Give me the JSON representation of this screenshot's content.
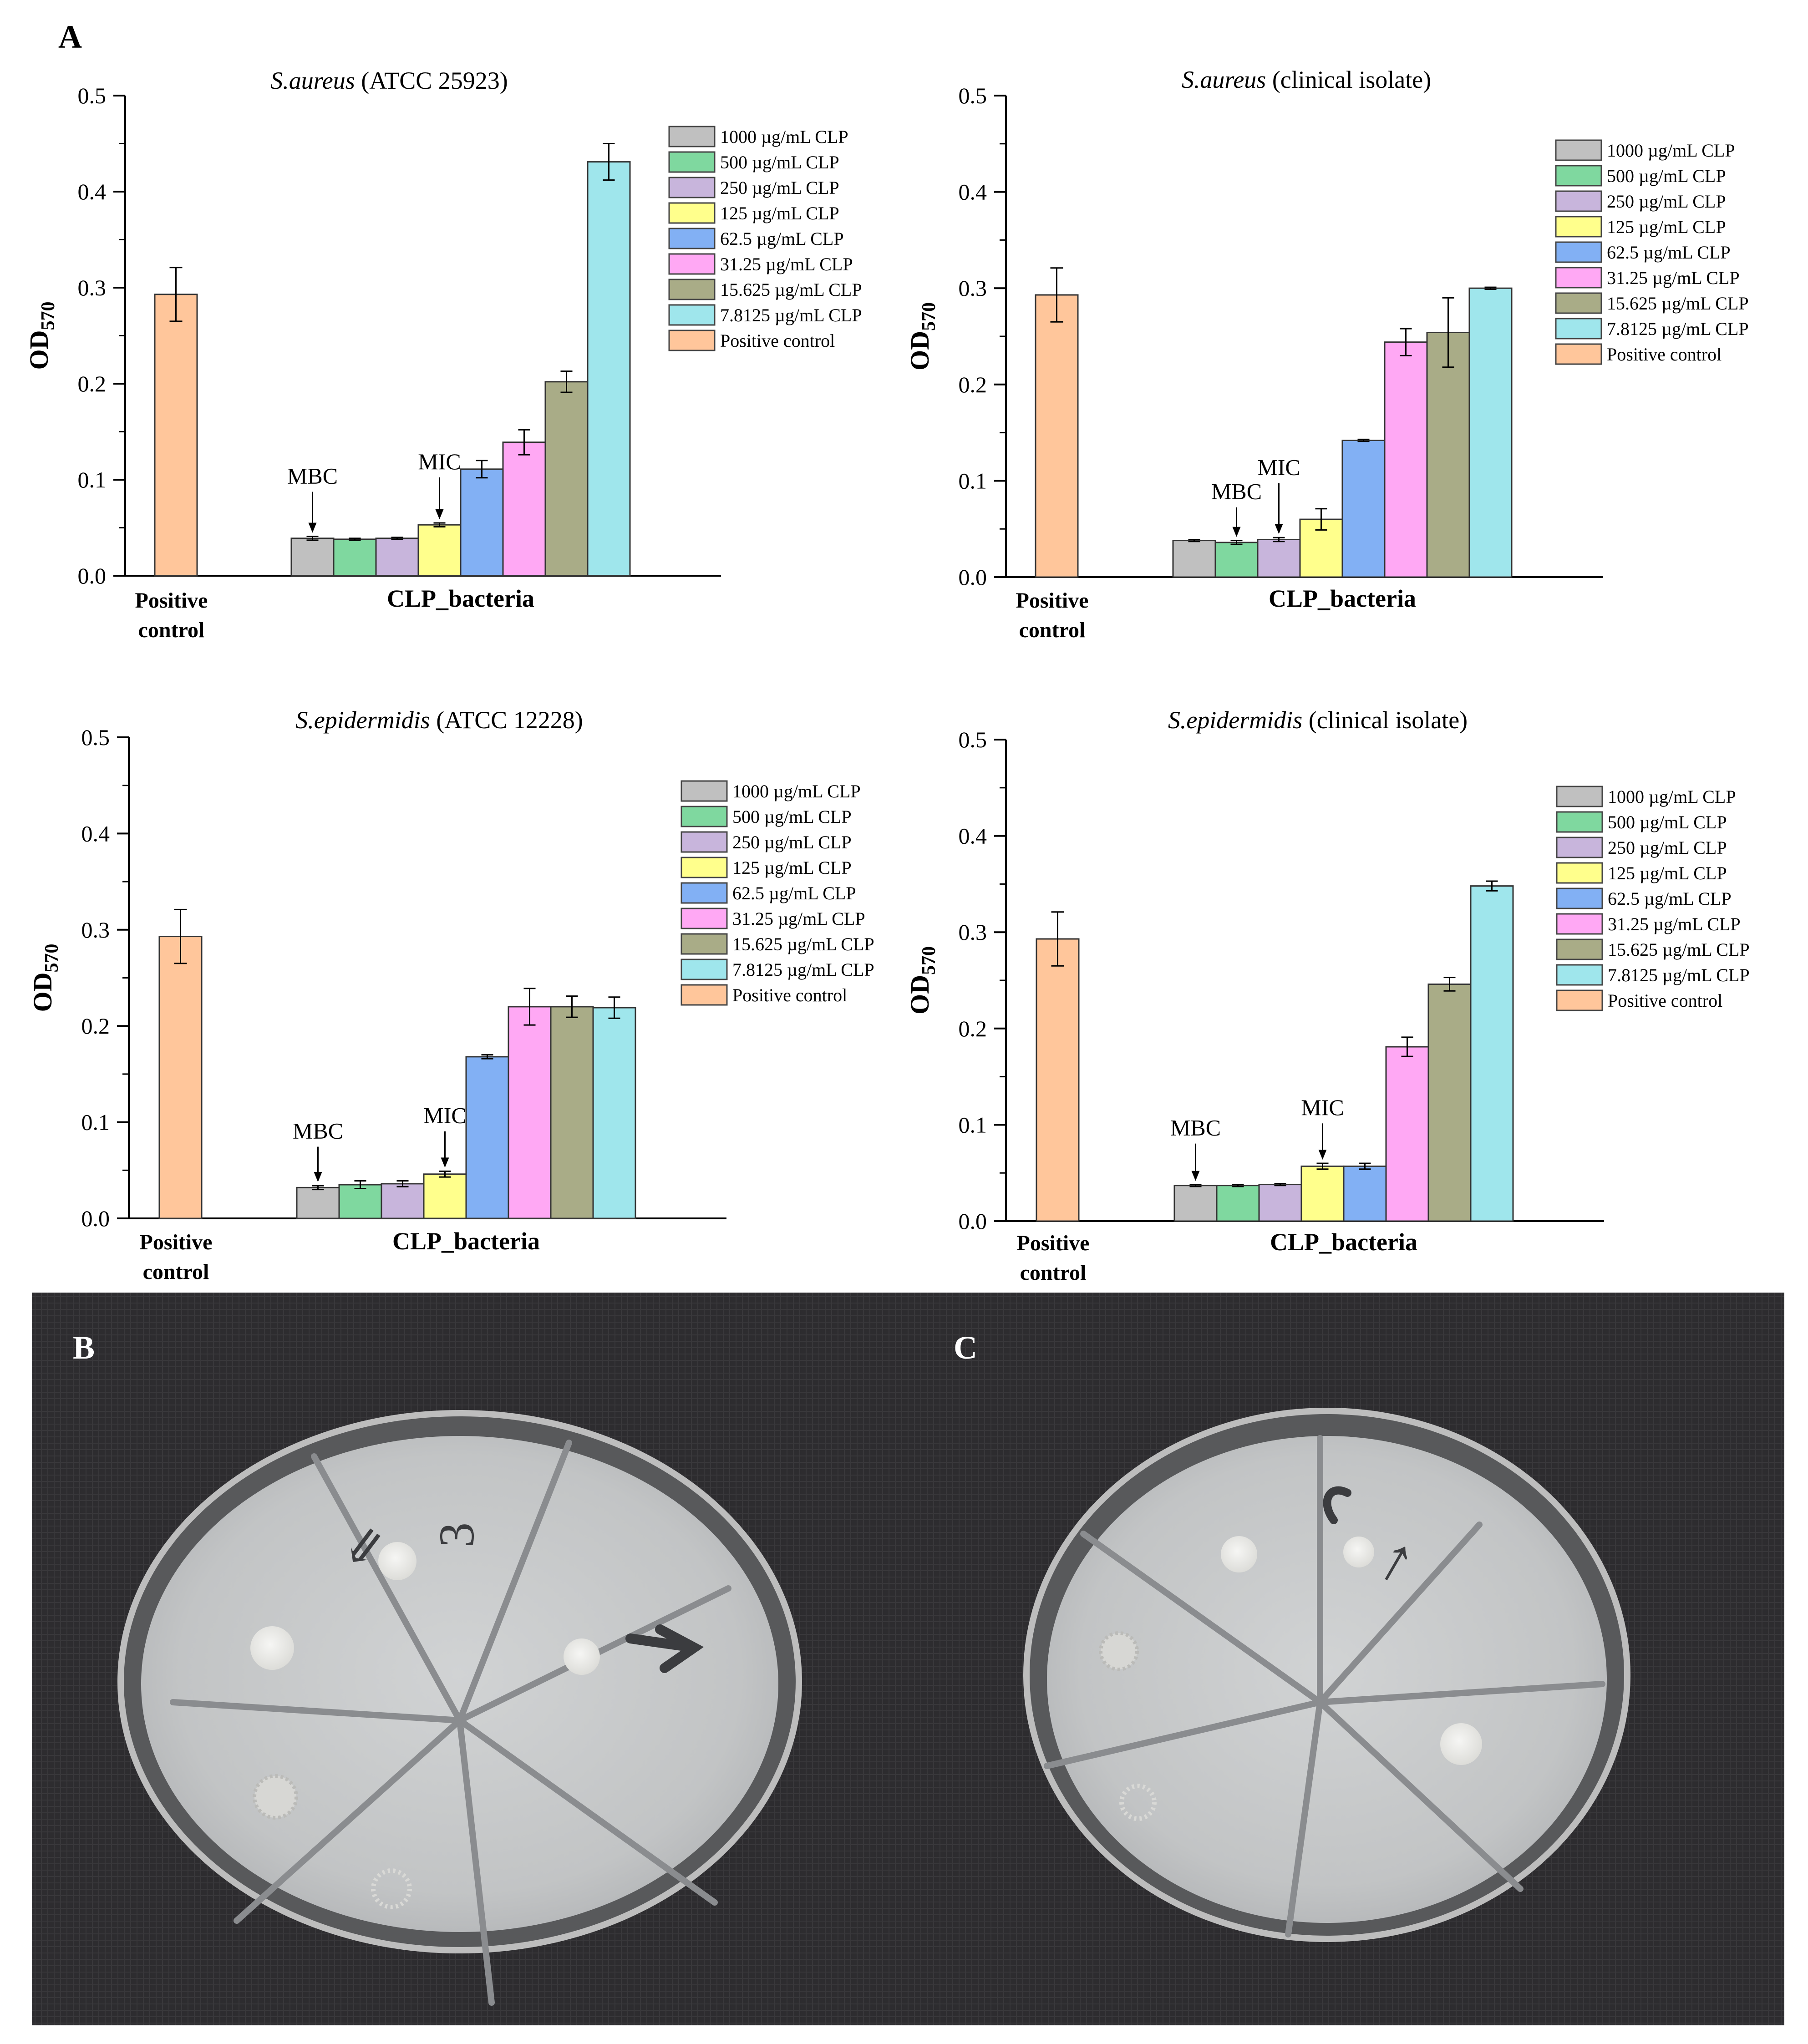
{
  "figure": {
    "panel_labels": [
      "A",
      "B",
      "C"
    ],
    "plate_marks": {
      "B": {
        "writing": [
          "⇙",
          "3"
        ]
      },
      "C": {
        "writing": [
          "↑"
        ]
      }
    }
  },
  "colors": {
    "1000": "#c0c0c0",
    "500": "#7fd89f",
    "250": "#c8b5dc",
    "125": "#ffff8c",
    "62.5": "#82b0f4",
    "31.25": "#ffa8f4",
    "15.625": "#a9ac87",
    "7.8125": "#9fe6ec",
    "positive": "#ffc69b",
    "bg_plate": "#2c2b2d",
    "agar": "#c6c8c9"
  },
  "chart_data": [
    {
      "type": "bar",
      "title": {
        "italic": "S.aureus",
        "rest": " (ATCC 25923)"
      },
      "ylabel": "OD",
      "ylabel_sub": "570",
      "ylim": [
        0,
        0.5
      ],
      "yticks": [
        "0.0",
        "0.1",
        "0.2",
        "0.3",
        "0.4",
        "0.5"
      ],
      "xlabel_left": [
        "Positive",
        "control"
      ],
      "xlabel_group": "CLP_bacteria",
      "positive_control": {
        "value": 0.293,
        "error": 0.028
      },
      "categories": [
        "1000 µg/mL CLP",
        "500 µg/mL CLP",
        "250 µg/mL CLP",
        "125 µg/mL CLP",
        "62.5 µg/mL CLP",
        "31.25 µg/mL CLP",
        "15.625 µg/mL CLP",
        "7.8125 µg/mL CLP"
      ],
      "values": [
        0.039,
        0.038,
        0.039,
        0.053,
        0.111,
        0.139,
        0.202,
        0.431
      ],
      "errors": [
        0.002,
        0.001,
        0.001,
        0.002,
        0.009,
        0.013,
        0.011,
        0.019
      ],
      "legend": [
        "1000 µg/mL CLP",
        "500 µg/mL CLP",
        "250 µg/mL CLP",
        "125 µg/mL CLP",
        "62.5 µg/mL CLP",
        "31.25 µg/mL CLP",
        "15.625 µg/mL CLP",
        "7.8125 µg/mL CLP",
        "Positive control"
      ],
      "legend_position": "top-right",
      "annotations": [
        {
          "text": "MBC",
          "bar_index": 0,
          "label_value": 0.096
        },
        {
          "text": "MIC",
          "bar_index": 3,
          "label_value": 0.111
        }
      ]
    },
    {
      "type": "bar",
      "title": {
        "italic": "S.aureus",
        "rest": " (clinical isolate)"
      },
      "ylabel": "OD",
      "ylabel_sub": "570",
      "ylim": [
        0,
        0.5
      ],
      "yticks": [
        "0.0",
        "0.1",
        "0.2",
        "0.3",
        "0.4",
        "0.5"
      ],
      "xlabel_left": [
        "Positive",
        "control"
      ],
      "xlabel_group": "CLP_bacteria",
      "positive_control": {
        "value": 0.293,
        "error": 0.028
      },
      "categories": [
        "1000 µg/mL CLP",
        "500 µg/mL CLP",
        "250 µg/mL CLP",
        "125 µg/mL CLP",
        "62.5 µg/mL CLP",
        "31.25 µg/mL CLP",
        "15.625 µg/mL CLP",
        "7.8125 µg/mL CLP"
      ],
      "values": [
        0.038,
        0.036,
        0.039,
        0.06,
        0.142,
        0.244,
        0.254,
        0.3
      ],
      "errors": [
        0.001,
        0.002,
        0.002,
        0.011,
        0.001,
        0.014,
        0.036,
        0.001
      ],
      "legend": [
        "1000 µg/mL CLP",
        "500 µg/mL CLP",
        "250 µg/mL CLP",
        "125 µg/mL CLP",
        "62.5 µg/mL CLP",
        "31.25 µg/mL CLP",
        "15.625 µg/mL CLP",
        "7.8125 µg/mL CLP",
        "Positive control"
      ],
      "legend_position": "top-right",
      "annotations": [
        {
          "text": "MBC",
          "bar_index": 1,
          "label_value": 0.081
        },
        {
          "text": "MIC",
          "bar_index": 2,
          "label_value": 0.106
        }
      ]
    },
    {
      "type": "bar",
      "title": {
        "italic": "S.epidermidis",
        "rest": " (ATCC 12228)"
      },
      "ylabel": "OD",
      "ylabel_sub": "570",
      "ylim": [
        0,
        0.5
      ],
      "yticks": [
        "0.0",
        "0.1",
        "0.2",
        "0.3",
        "0.4",
        "0.5"
      ],
      "xlabel_left": [
        "Positive",
        "control"
      ],
      "xlabel_group": "CLP_bacteria",
      "positive_control": {
        "value": 0.293,
        "error": 0.028
      },
      "categories": [
        "1000 µg/mL CLP",
        "500 µg/mL CLP",
        "250 µg/mL CLP",
        "125 µg/mL CLP",
        "62.5 µg/mL CLP",
        "31.25 µg/mL CLP",
        "15.625 µg/mL CLP",
        "7.8125 µg/mL CLP"
      ],
      "values": [
        0.032,
        0.035,
        0.036,
        0.046,
        0.168,
        0.22,
        0.22,
        0.219
      ],
      "errors": [
        0.002,
        0.004,
        0.003,
        0.003,
        0.002,
        0.019,
        0.011,
        0.011
      ],
      "legend": [
        "1000 µg/mL CLP",
        "500 µg/mL CLP",
        "250 µg/mL CLP",
        "125 µg/mL CLP",
        "62.5 µg/mL CLP",
        "31.25 µg/mL CLP",
        "15.625 µg/mL CLP",
        "7.8125 µg/mL CLP",
        "Positive control"
      ],
      "legend_position": "top-right",
      "annotations": [
        {
          "text": "MBC",
          "bar_index": 0,
          "label_value": 0.083
        },
        {
          "text": "MIC",
          "bar_index": 3,
          "label_value": 0.099
        }
      ]
    },
    {
      "type": "bar",
      "title": {
        "italic": "S.epidermidis",
        "rest": " (clinical isolate)"
      },
      "ylabel": "OD",
      "ylabel_sub": "570",
      "ylim": [
        0,
        0.5
      ],
      "yticks": [
        "0.0",
        "0.1",
        "0.2",
        "0.3",
        "0.4",
        "0.5"
      ],
      "xlabel_left": [
        "Positive",
        "control"
      ],
      "xlabel_group": "CLP_bacteria",
      "positive_control": {
        "value": 0.293,
        "error": 0.028
      },
      "categories": [
        "1000 µg/mL CLP",
        "500 µg/mL CLP",
        "250 µg/mL CLP",
        "125 µg/mL CLP",
        "62.5 µg/mL CLP",
        "31.25 µg/mL CLP",
        "15.625 µg/mL CLP",
        "7.8125 µg/mL CLP"
      ],
      "values": [
        0.037,
        0.037,
        0.038,
        0.057,
        0.057,
        0.181,
        0.246,
        0.348
      ],
      "errors": [
        0.001,
        0.001,
        0.001,
        0.003,
        0.003,
        0.01,
        0.007,
        0.005
      ],
      "legend": [
        "1000 µg/mL CLP",
        "500 µg/mL CLP",
        "250 µg/mL CLP",
        "125 µg/mL CLP",
        "62.5 µg/mL CLP",
        "31.25 µg/mL CLP",
        "15.625 µg/mL CLP",
        "7.8125 µg/mL CLP",
        "Positive control"
      ],
      "legend_position": "top-right",
      "annotations": [
        {
          "text": "MBC",
          "bar_index": 0,
          "label_value": 0.089
        },
        {
          "text": "MIC",
          "bar_index": 3,
          "label_value": 0.11
        }
      ]
    }
  ]
}
